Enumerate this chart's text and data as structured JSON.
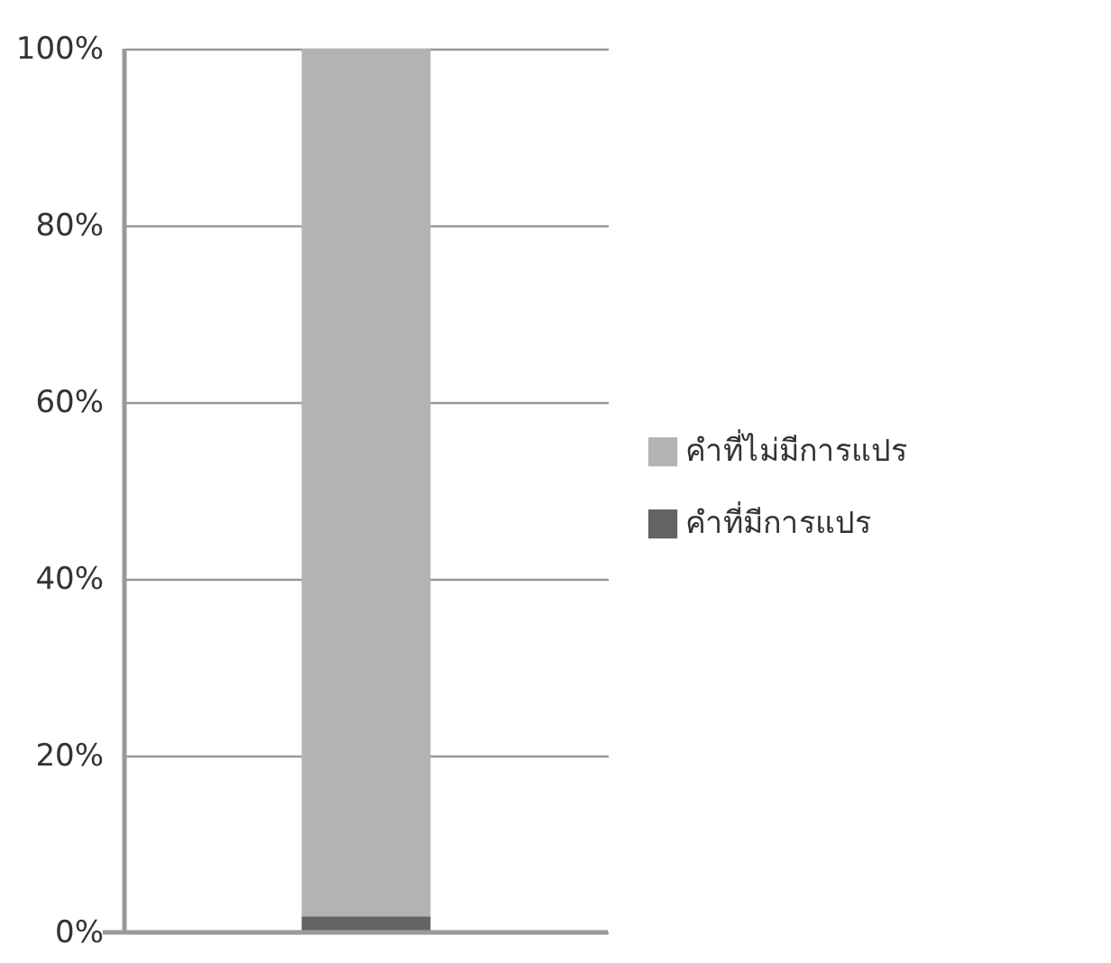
{
  "chart_data": {
    "type": "bar",
    "stacked": true,
    "categories": [
      null
    ],
    "series": [
      {
        "name": "คำที่มีการแปร",
        "color": "#636363",
        "values": [
          1.8
        ]
      },
      {
        "name": "คำที่ไม่มีการแปร",
        "color": "#b3b3b3",
        "values": [
          98.2
        ]
      }
    ],
    "ylim": [
      0,
      100
    ],
    "yticks": [
      {
        "value": 0,
        "label": "0%"
      },
      {
        "value": 20,
        "label": "20%"
      },
      {
        "value": 40,
        "label": "40%"
      },
      {
        "value": 60,
        "label": "60%"
      },
      {
        "value": 80,
        "label": "80%"
      },
      {
        "value": 100,
        "label": "100%"
      }
    ],
    "grid": "y",
    "legend": "right"
  }
}
